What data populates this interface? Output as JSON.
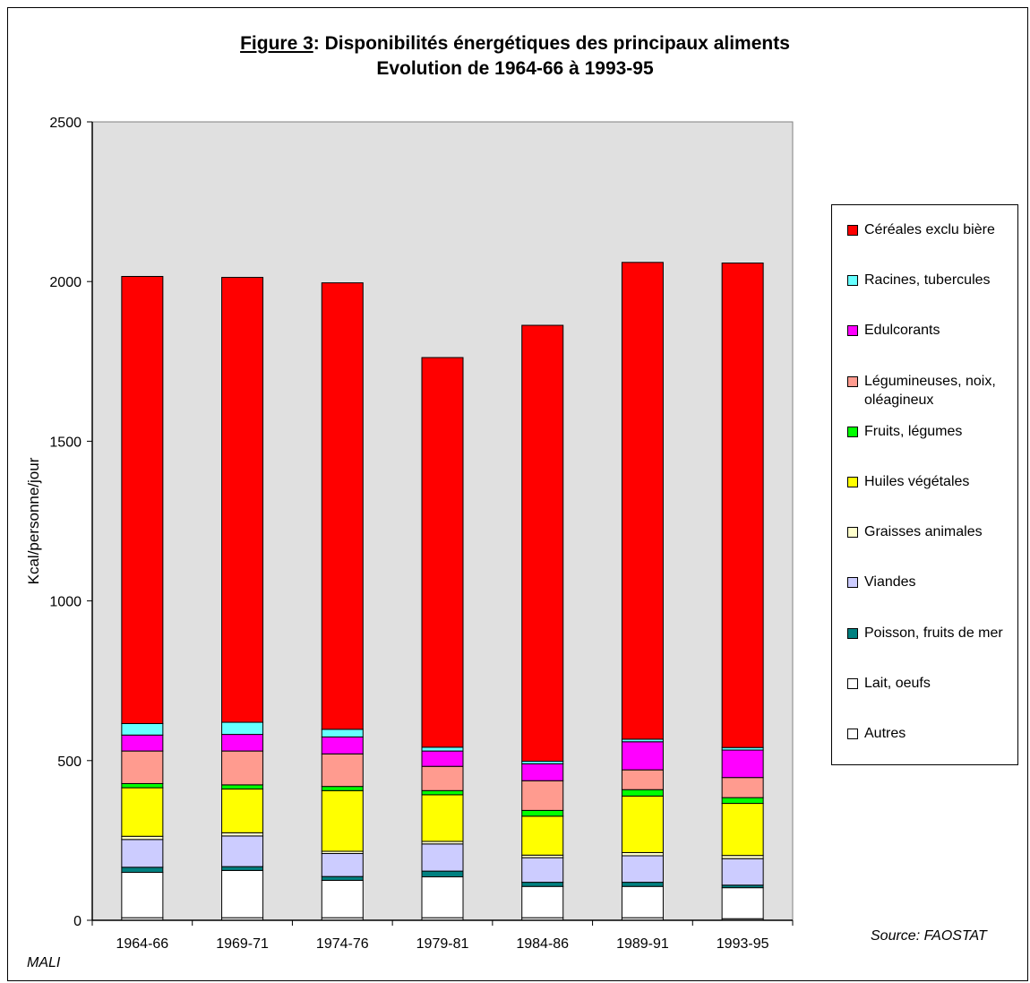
{
  "title": {
    "prefix": "Figure 3",
    "rest": ": Disponibilités énergétiques des principaux aliments",
    "line2": "Evolution de 1964-66 à 1993-95"
  },
  "footer": {
    "country": "MALI",
    "source": "Source: FAOSTAT"
  },
  "chart_data": {
    "type": "bar",
    "stacked": true,
    "title": "Figure 3: Disponibilités énergétiques des principaux aliments Evolution de 1964-66 à 1993-95",
    "ylabel": "Kcal/personne/jour",
    "ylim": [
      0,
      2500
    ],
    "yticks": [
      0,
      500,
      1000,
      1500,
      2000,
      2500
    ],
    "categories": [
      "1964-66",
      "1969-71",
      "1974-76",
      "1979-81",
      "1984-86",
      "1989-91",
      "1993-95"
    ],
    "legend_position": "right",
    "plot_background": "#e0e0e0",
    "series": [
      {
        "name": "Autres",
        "color": "#ffffff",
        "values": [
          8,
          8,
          8,
          8,
          8,
          8,
          5
        ]
      },
      {
        "name": "Lait, oeufs",
        "color": "#ffffff",
        "values": [
          142,
          148,
          117,
          128,
          98,
          98,
          97
        ]
      },
      {
        "name": "Poisson, fruits de mer",
        "color": "#008080",
        "values": [
          16,
          12,
          12,
          18,
          13,
          13,
          8
        ]
      },
      {
        "name": "Viandes",
        "color": "#ccccff",
        "values": [
          87,
          96,
          72,
          85,
          77,
          83,
          83
        ]
      },
      {
        "name": "Graisses animales",
        "color": "#ffffcc",
        "values": [
          10,
          10,
          7,
          8,
          8,
          10,
          10
        ]
      },
      {
        "name": "Huiles végétales",
        "color": "#ffff00",
        "values": [
          152,
          137,
          190,
          146,
          122,
          177,
          163
        ]
      },
      {
        "name": "Fruits, légumes",
        "color": "#00ff00",
        "values": [
          13,
          13,
          13,
          13,
          18,
          20,
          18
        ]
      },
      {
        "name": "Légumineuses, noix, oléagineux",
        "color": "#ff9b8f",
        "values": [
          102,
          106,
          102,
          76,
          93,
          62,
          63
        ]
      },
      {
        "name": "Edulcorants",
        "color": "#ff00ff",
        "values": [
          50,
          52,
          53,
          48,
          53,
          88,
          86
        ]
      },
      {
        "name": "Racines, tubercules",
        "color": "#66ffff",
        "values": [
          36,
          38,
          24,
          12,
          8,
          8,
          8
        ]
      },
      {
        "name": "Céréales exclu bière",
        "color": "#ff0000",
        "values": [
          1400,
          1393,
          1398,
          1220,
          1365,
          1493,
          1517
        ]
      }
    ]
  }
}
